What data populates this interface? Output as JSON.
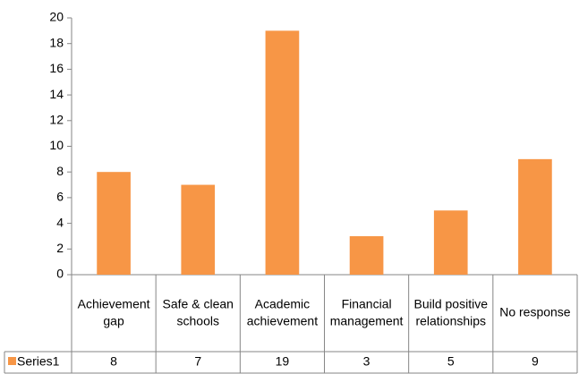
{
  "chart_data": {
    "type": "bar",
    "categories": [
      "Achievement gap",
      "Safe & clean schools",
      "Academic achievement",
      "Financial management",
      "Build positive relationships",
      "No response"
    ],
    "series": [
      {
        "name": "Series1",
        "color": "#f79646",
        "values": [
          8,
          7,
          19,
          3,
          5,
          9
        ]
      }
    ],
    "ylim": [
      0,
      20
    ],
    "yticks": [
      0,
      2,
      4,
      6,
      8,
      10,
      12,
      14,
      16,
      18,
      20
    ],
    "grid": false,
    "data_table": true
  }
}
